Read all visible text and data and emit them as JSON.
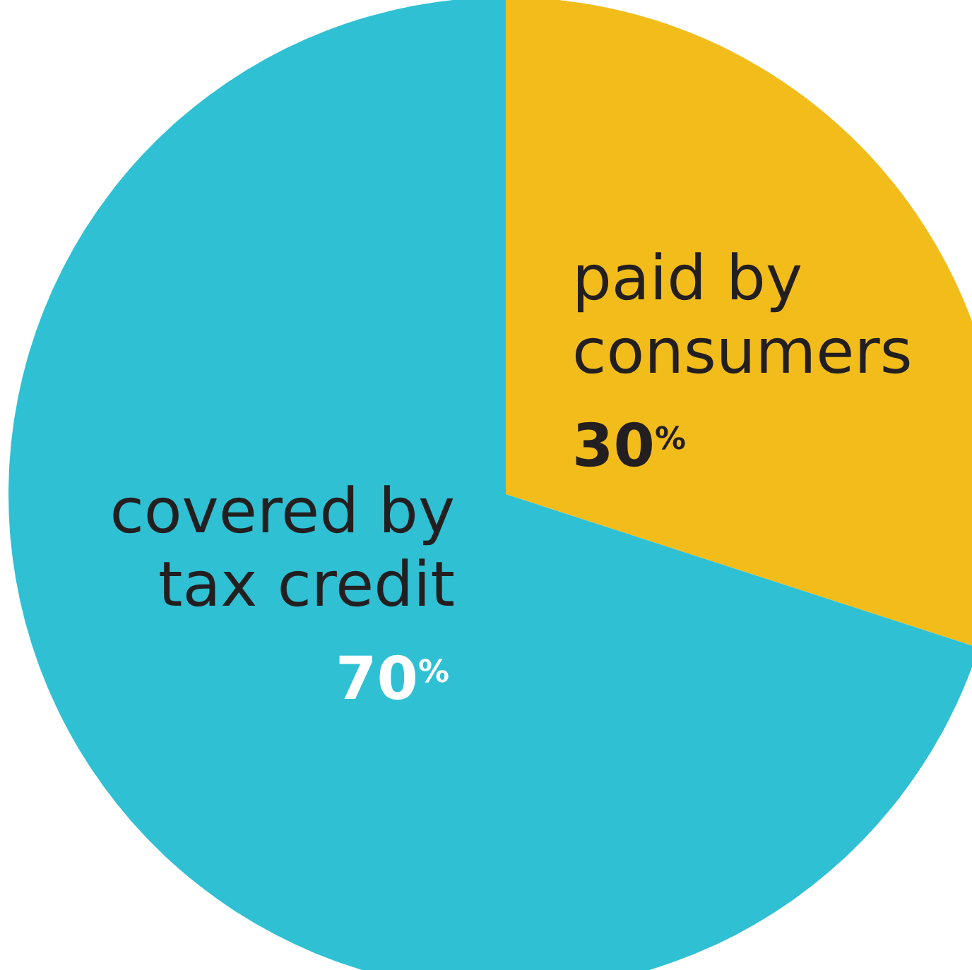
{
  "chart_data": {
    "type": "pie",
    "categories": [
      "paid by consumers",
      "covered by tax credit"
    ],
    "values": [
      30,
      70
    ],
    "colors": [
      "#f2bc1b",
      "#2fc0d3"
    ],
    "value_labels": [
      "30$^{%}$",
      "70$^{%}$"
    ]
  }
}
